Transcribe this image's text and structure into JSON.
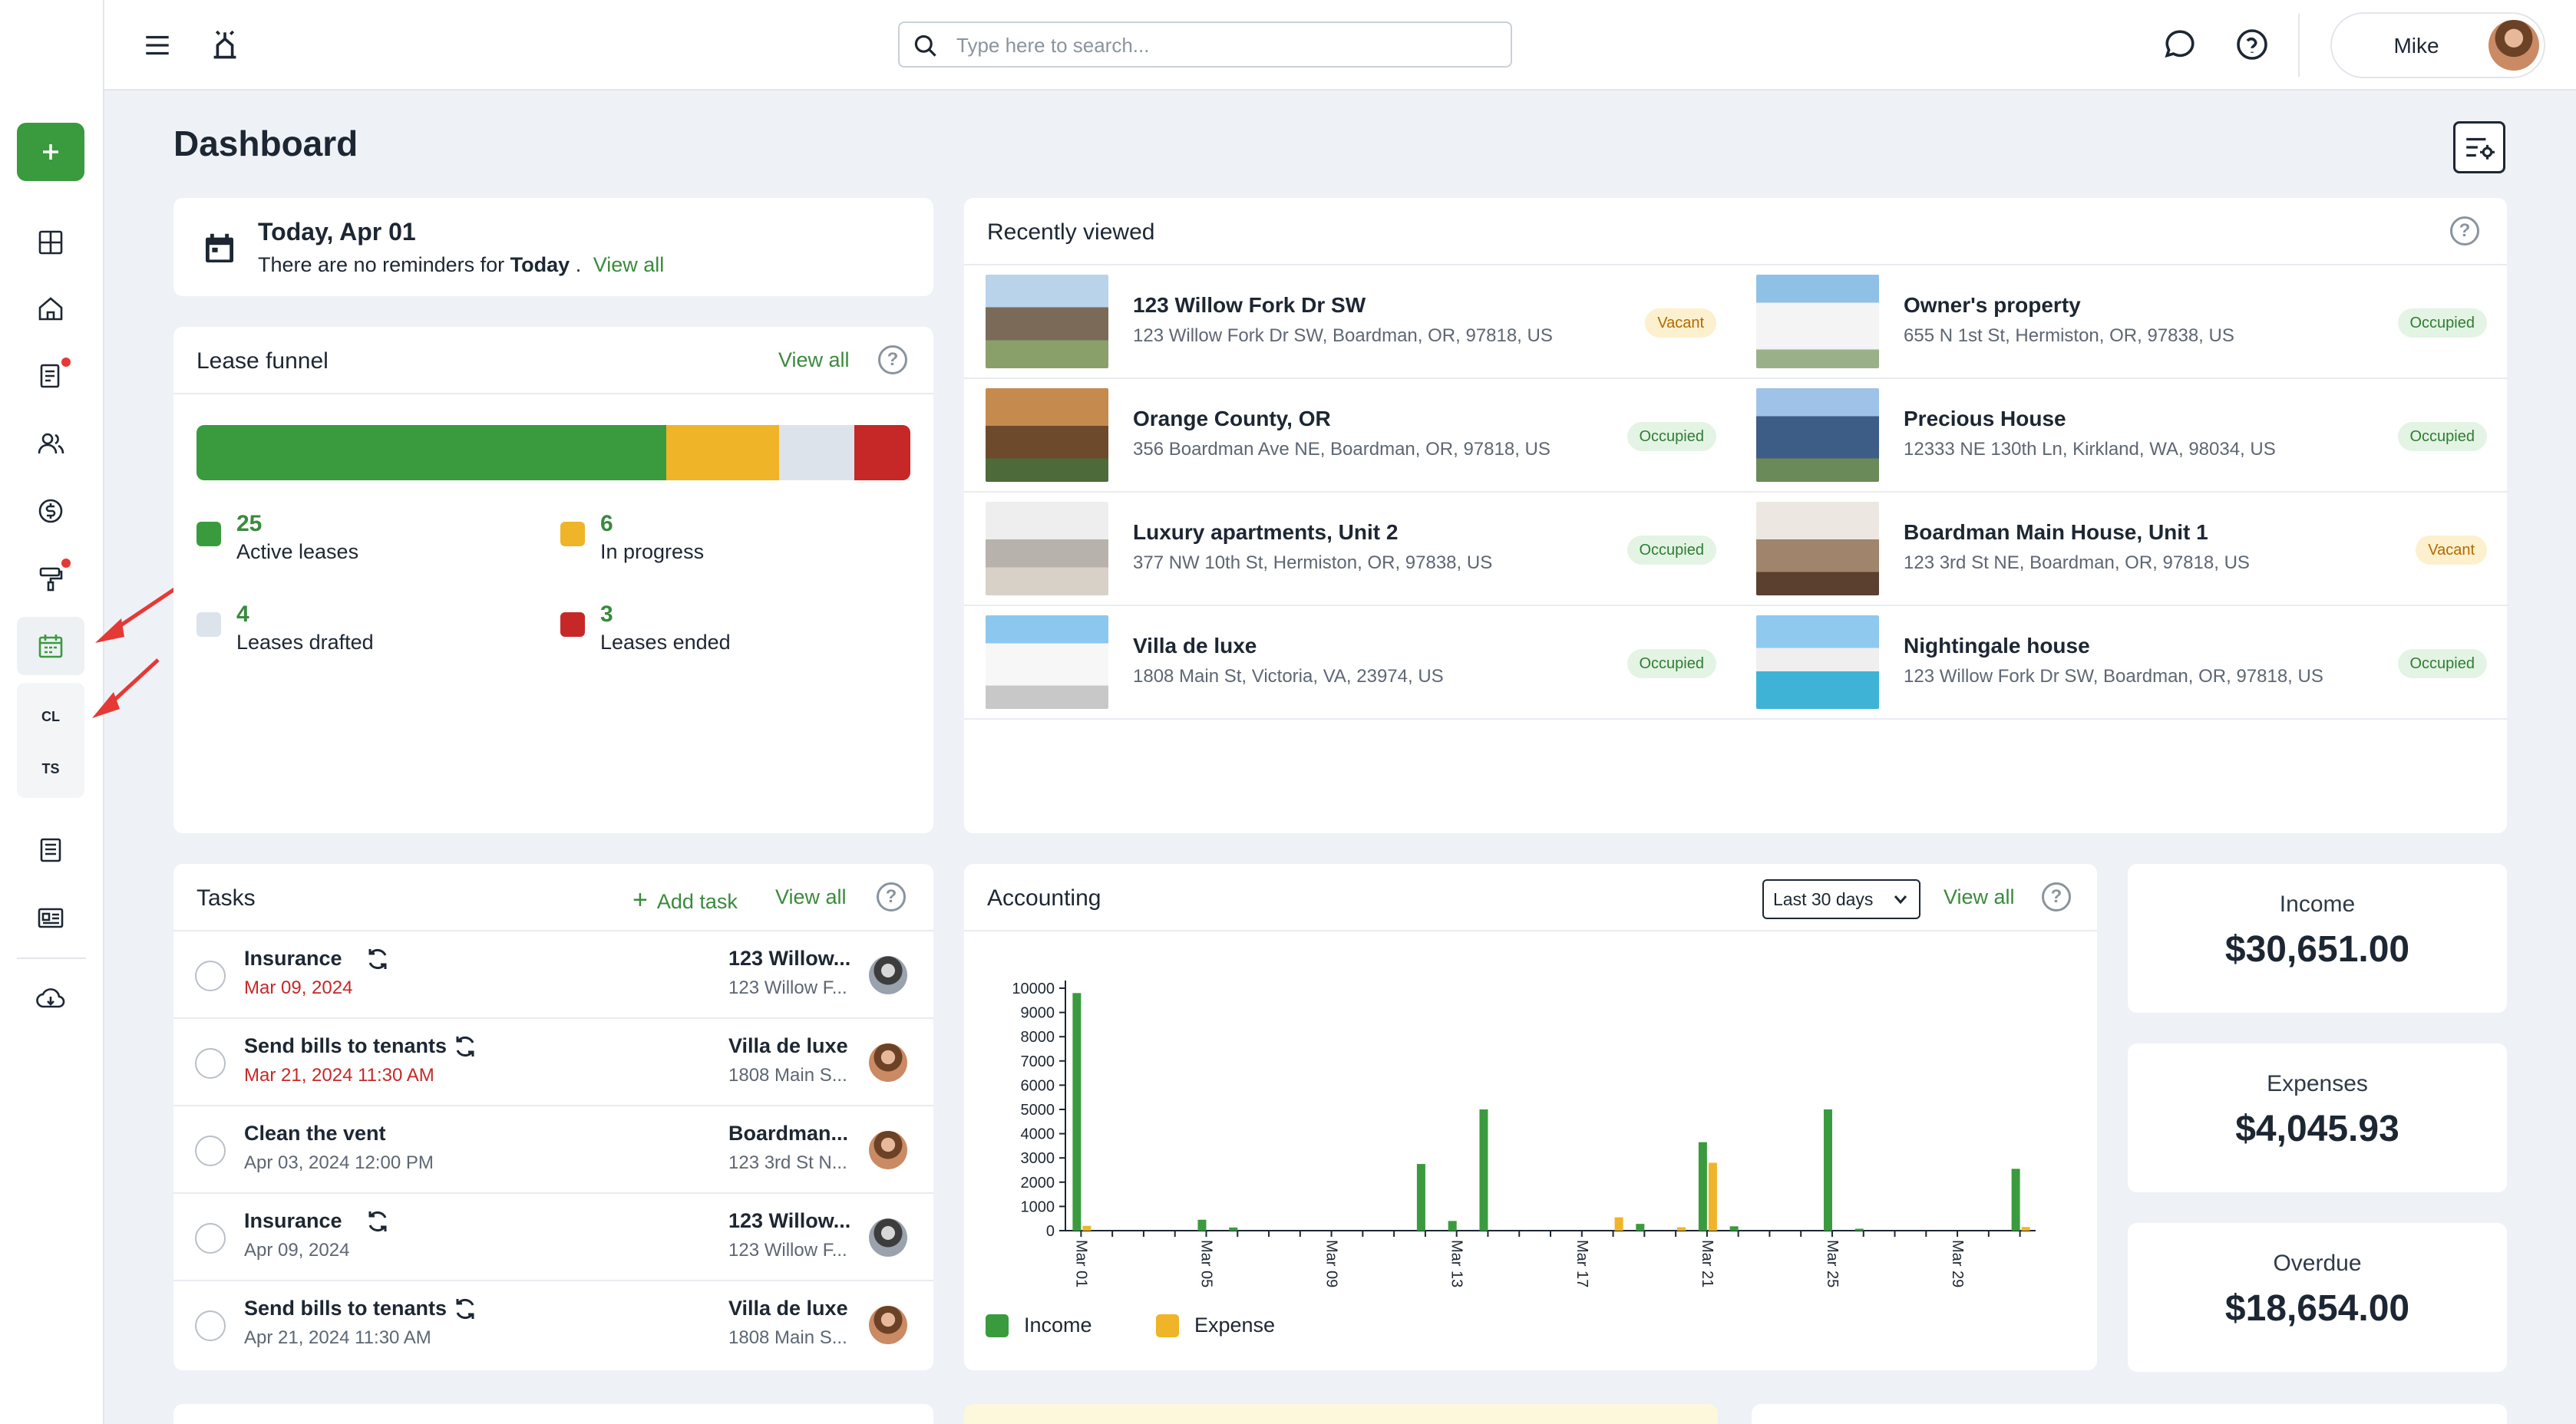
{
  "search": {
    "placeholder": "Type here to search..."
  },
  "user": {
    "name": "Mike"
  },
  "sidebar": {
    "sub_items": [
      "CL",
      "TS"
    ]
  },
  "page": {
    "title": "Dashboard"
  },
  "today": {
    "title": "Today, Apr 01",
    "text_before": "There are no reminders for",
    "bold": "Today",
    "text_after": ".",
    "link": "View all"
  },
  "lease_funnel": {
    "title": "Lease funnel",
    "link": "View all",
    "help": "?",
    "items": [
      {
        "count": "25",
        "label": "Active leases",
        "color": "#3a9a3e",
        "value": 25
      },
      {
        "count": "6",
        "label": "In progress",
        "color": "#f0b429",
        "value": 6
      },
      {
        "count": "4",
        "label": "Leases drafted",
        "color": "#dde3ea",
        "value": 4
      },
      {
        "count": "3",
        "label": "Leases ended",
        "color": "#c62828",
        "value": 3
      }
    ]
  },
  "recently_viewed": {
    "title": "Recently viewed",
    "help": "?",
    "items": [
      {
        "name": "123 Willow Fork Dr SW",
        "address": "123 Willow Fork Dr SW, Boardman, OR, 97818, US",
        "status": "Vacant"
      },
      {
        "name": "Owner's property",
        "address": "655 N 1st St, Hermiston, OR, 97838, US",
        "status": "Occupied"
      },
      {
        "name": "Orange County, OR",
        "address": "356 Boardman Ave NE, Boardman, OR, 97818, US",
        "status": "Occupied"
      },
      {
        "name": "Precious House",
        "address": "12333 NE 130th Ln, Kirkland, WA, 98034, US",
        "status": "Occupied"
      },
      {
        "name": "Luxury apartments, Unit 2",
        "address": "377 NW 10th St, Hermiston, OR, 97838, US",
        "status": "Occupied"
      },
      {
        "name": "Boardman Main House, Unit 1",
        "address": "123 3rd St NE, Boardman, OR, 97818, US",
        "status": "Vacant"
      },
      {
        "name": "Villa de luxe",
        "address": "1808 Main St, Victoria, VA, 23974, US",
        "status": "Occupied"
      },
      {
        "name": "Nightingale house",
        "address": "123 Willow Fork Dr SW, Boardman, OR, 97818, US",
        "status": "Occupied"
      }
    ]
  },
  "tasks": {
    "title": "Tasks",
    "add_label": "Add task",
    "link": "View all",
    "help": "?",
    "items": [
      {
        "name": "Insurance",
        "date": "Mar 09, 2024",
        "overdue": true,
        "recurring": true,
        "property": "123 Willow...",
        "address": "123 Willow F...",
        "avatar": "grey"
      },
      {
        "name": "Send bills to tenants",
        "date": "Mar 21, 2024 11:30 AM",
        "overdue": true,
        "recurring": true,
        "property": "Villa de luxe",
        "address": "1808 Main S...",
        "avatar": "brown"
      },
      {
        "name": "Clean the vent",
        "date": "Apr 03, 2024 12:00 PM",
        "overdue": false,
        "recurring": false,
        "property": "Boardman...",
        "address": "123 3rd St N...",
        "avatar": "brown"
      },
      {
        "name": "Insurance",
        "date": "Apr 09, 2024",
        "overdue": false,
        "recurring": true,
        "property": "123 Willow...",
        "address": "123 Willow F...",
        "avatar": "grey"
      },
      {
        "name": "Send bills to tenants",
        "date": "Apr 21, 2024 11:30 AM",
        "overdue": false,
        "recurring": true,
        "property": "Villa de luxe",
        "address": "1808 Main S...",
        "avatar": "brown"
      }
    ]
  },
  "accounting": {
    "title": "Accounting",
    "range": "Last 30 days",
    "link": "View all",
    "help": "?"
  },
  "chart_data": {
    "type": "bar",
    "title": "",
    "xlabel": "",
    "ylabel": "",
    "ylim": [
      0,
      10000
    ],
    "yticks": [
      "0",
      "1000",
      "2000",
      "3000",
      "4000",
      "5000",
      "6000",
      "7000",
      "8000",
      "9000",
      "10000"
    ],
    "categories": [
      "Mar 01",
      "Mar 02",
      "Mar 03",
      "Mar 04",
      "Mar 05",
      "Mar 06",
      "Mar 07",
      "Mar 08",
      "Mar 09",
      "Mar 10",
      "Mar 11",
      "Mar 12",
      "Mar 13",
      "Mar 14",
      "Mar 15",
      "Mar 16",
      "Mar 17",
      "Mar 18",
      "Mar 19",
      "Mar 20",
      "Mar 21",
      "Mar 22",
      "Mar 23",
      "Mar 24",
      "Mar 25",
      "Mar 26",
      "Mar 27",
      "Mar 28",
      "Mar 29",
      "Mar 30",
      "Mar 31"
    ],
    "tick_labels": [
      "Mar 01",
      "",
      "",
      "",
      "Mar 05",
      "",
      "",
      "",
      "Mar 09",
      "",
      "",
      "",
      "Mar 13",
      "",
      "",
      "",
      "Mar 17",
      "",
      "",
      "",
      "Mar 21",
      "",
      "",
      "",
      "Mar 25",
      "",
      "",
      "",
      "Mar 29",
      "",
      ""
    ],
    "legend": "bottom-left",
    "grid": false,
    "series": [
      {
        "name": "Income",
        "color": "#3a9a3e",
        "values": [
          9800,
          0,
          0,
          0,
          450,
          130,
          0,
          0,
          0,
          0,
          0,
          2750,
          400,
          5000,
          0,
          0,
          0,
          0,
          280,
          0,
          3650,
          180,
          0,
          0,
          5000,
          80,
          0,
          0,
          0,
          0,
          2550
        ]
      },
      {
        "name": "Expense",
        "color": "#f0b429",
        "values": [
          200,
          0,
          0,
          0,
          0,
          0,
          0,
          0,
          0,
          0,
          0,
          0,
          0,
          0,
          0,
          0,
          0,
          550,
          0,
          140,
          2800,
          0,
          0,
          0,
          0,
          0,
          0,
          0,
          0,
          0,
          150
        ]
      }
    ]
  },
  "summary": [
    {
      "label": "Income",
      "value": "$30,651.00"
    },
    {
      "label": "Expenses",
      "value": "$4,045.93"
    },
    {
      "label": "Overdue",
      "value": "$18,654.00"
    }
  ]
}
